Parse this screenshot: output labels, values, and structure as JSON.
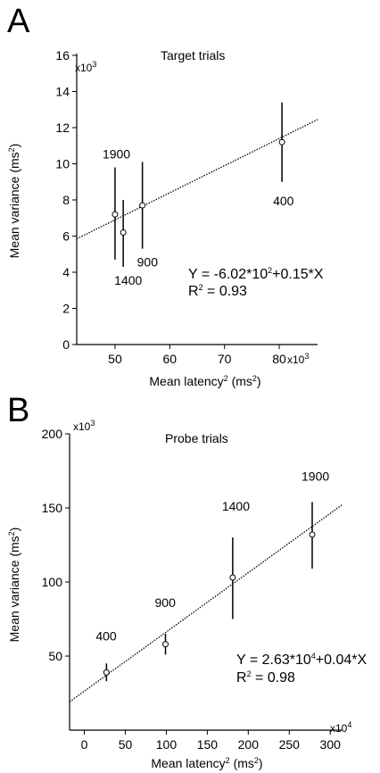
{
  "panels": [
    {
      "letter": "A",
      "title": "Target trials",
      "y_multiplier": "x10",
      "y_multiplier_exp": "3",
      "x_multiplier": "x10",
      "x_multiplier_exp": "3",
      "ylabel_main": "Mean variance (ms",
      "ylabel_sup": "2",
      "ylabel_end": ")",
      "xlabel_main": "Mean latency",
      "xlabel_sup": "2",
      "xlabel_mid": " (ms",
      "xlabel_sup2": "2",
      "xlabel_end": ")",
      "eq_line1": "Y = -6.02*10",
      "eq_line1_sup": "2",
      "eq_line1_end": "+0.15*X",
      "eq_line2": "R",
      "eq_line2_sup": "2",
      "eq_line2_end": " = 0.93"
    },
    {
      "letter": "B",
      "title": "Probe trials",
      "y_multiplier": "x10",
      "y_multiplier_exp": "3",
      "x_multiplier": "x10",
      "x_multiplier_exp": "4",
      "ylabel_main": "Mean variance (ms",
      "ylabel_sup": "2",
      "ylabel_end": ")",
      "xlabel_main": "Mean latency",
      "xlabel_sup": "2",
      "xlabel_mid": " (ms",
      "xlabel_sup2": "2",
      "xlabel_end": ")",
      "eq_line1": "Y = 2.63*10",
      "eq_line1_sup": "4",
      "eq_line1_end": "+0.04*X",
      "eq_line2": "R",
      "eq_line2_sup": "2",
      "eq_line2_end": " = 0.98"
    }
  ],
  "chart_data": [
    {
      "type": "scatter",
      "title": "Target trials",
      "xlabel": "Mean latency² (ms²)",
      "ylabel": "Mean variance (ms²)",
      "x_scale_note": "x10³",
      "y_scale_note": "x10³",
      "xlim": [
        43,
        87
      ],
      "ylim": [
        0,
        16
      ],
      "xticks": [
        50,
        60,
        70,
        80
      ],
      "yticks": [
        0,
        2,
        4,
        6,
        8,
        10,
        12,
        14,
        16
      ],
      "points": [
        {
          "label": "1900",
          "x": 50.0,
          "y": 7.2,
          "err_low": 4.7,
          "err_high": 9.8
        },
        {
          "label": "1400",
          "x": 51.5,
          "y": 6.2,
          "err_low": 4.3,
          "err_high": 8.0
        },
        {
          "label": "900",
          "x": 55.0,
          "y": 7.7,
          "err_low": 5.3,
          "err_high": 10.1
        },
        {
          "label": "400",
          "x": 80.5,
          "y": 11.2,
          "err_low": 9.0,
          "err_high": 13.4
        }
      ],
      "fit": {
        "intercept": -0.602,
        "slope": 0.15,
        "equation": "Y = -6.02*10²+0.15*X",
        "r2": 0.93
      }
    },
    {
      "type": "scatter",
      "title": "Probe trials",
      "xlabel": "Mean latency² (ms²)",
      "ylabel": "Mean variance (ms²)",
      "x_scale_note": "x10⁴",
      "y_scale_note": "x10³",
      "xlim": [
        -18,
        315
      ],
      "ylim": [
        0,
        200
      ],
      "xticks": [
        0,
        50,
        100,
        150,
        200,
        250,
        300
      ],
      "yticks": [
        50,
        100,
        150,
        200
      ],
      "points": [
        {
          "label": "400",
          "x": 27,
          "y": 39,
          "err_low": 33,
          "err_high": 45
        },
        {
          "label": "900",
          "x": 99,
          "y": 58,
          "err_low": 51,
          "err_high": 65
        },
        {
          "label": "1400",
          "x": 181,
          "y": 103,
          "err_low": 75,
          "err_high": 130
        },
        {
          "label": "1900",
          "x": 278,
          "y": 132,
          "err_low": 109,
          "err_high": 154
        }
      ],
      "fit": {
        "intercept": 26.3,
        "slope": 0.4,
        "equation": "Y = 2.63*10⁴+0.04*X",
        "r2": 0.98
      }
    }
  ]
}
